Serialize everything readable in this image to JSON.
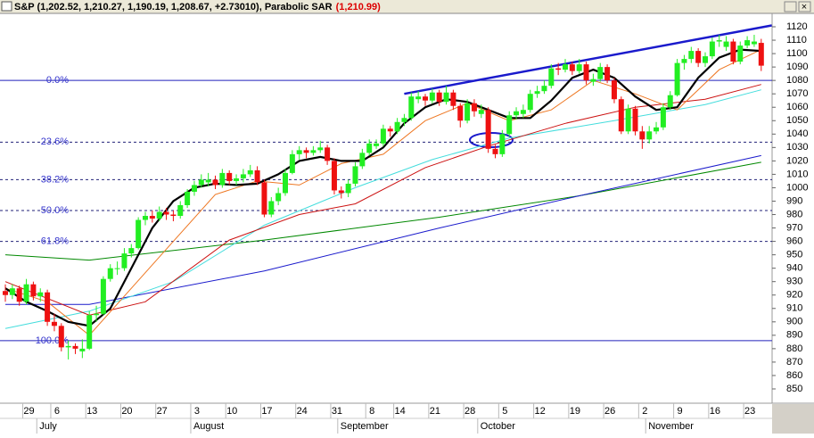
{
  "chart_data": {
    "type": "candlestick",
    "title": "S&P (1,202.52, 1,210.27, 1,190.19, 1,208.67, +2.73010), Parabolic SAR",
    "title_highlight": "(1,210.99)",
    "ylim": [
      845,
      1125
    ],
    "yticks": [
      850,
      860,
      870,
      880,
      890,
      900,
      910,
      920,
      930,
      940,
      950,
      960,
      970,
      980,
      990,
      1000,
      1010,
      1020,
      1030,
      1040,
      1050,
      1060,
      1070,
      1080,
      1090,
      1100,
      1110,
      1120
    ],
    "up_color": "#22ee22",
    "down_color": "#ee1111",
    "categories": [
      null,
      null,
      null,
      "29",
      null,
      null,
      null,
      "6",
      null,
      null,
      null,
      null,
      "13",
      null,
      null,
      null,
      null,
      "20",
      null,
      null,
      null,
      null,
      "27",
      null,
      null,
      null,
      null,
      "3",
      null,
      null,
      null,
      null,
      "10",
      null,
      null,
      null,
      null,
      "17",
      null,
      null,
      null,
      null,
      "24",
      null,
      null,
      null,
      null,
      "31",
      null,
      null,
      null,
      null,
      "8",
      null,
      null,
      null,
      "14",
      null,
      null,
      null,
      null,
      "21",
      null,
      null,
      null,
      null,
      "28",
      null,
      null,
      null,
      null,
      "5",
      null,
      null,
      null,
      null,
      "12",
      null,
      null,
      null,
      null,
      "19",
      null,
      null,
      null,
      null,
      "26",
      null,
      null,
      null,
      null,
      "2",
      null,
      null,
      null,
      null,
      "9",
      null,
      null,
      null,
      null,
      "16",
      null,
      null,
      null,
      null,
      "23",
      null,
      null
    ],
    "months": [
      null,
      null,
      null,
      null,
      null,
      "July",
      null,
      null,
      null,
      null,
      null,
      null,
      null,
      null,
      null,
      null,
      null,
      null,
      null,
      null,
      null,
      null,
      null,
      null,
      null,
      null,
      null,
      "August",
      null,
      null,
      null,
      null,
      null,
      null,
      null,
      null,
      null,
      null,
      null,
      null,
      null,
      null,
      null,
      null,
      null,
      null,
      null,
      null,
      "September",
      null,
      null,
      null,
      null,
      null,
      null,
      null,
      null,
      null,
      null,
      null,
      null,
      null,
      null,
      null,
      null,
      null,
      null,
      null,
      "October",
      null,
      null,
      null,
      null,
      null,
      null,
      null,
      null,
      null,
      null,
      null,
      null,
      null,
      null,
      null,
      null,
      null,
      null,
      null,
      null,
      null,
      null,
      null,
      "November",
      null,
      null,
      null,
      null,
      null,
      null,
      null,
      null,
      null,
      null,
      null,
      null,
      null,
      null,
      null,
      null,
      null
    ],
    "ohlc": [
      [
        923,
        928,
        915,
        920
      ],
      [
        920,
        928,
        917,
        925
      ],
      [
        925,
        927,
        912,
        915
      ],
      [
        915,
        932,
        913,
        928
      ],
      [
        928,
        930,
        916,
        919
      ],
      [
        919,
        925,
        915,
        922
      ],
      [
        922,
        924,
        897,
        900
      ],
      [
        900,
        906,
        893,
        897
      ],
      [
        897,
        899,
        878,
        881
      ],
      [
        881,
        886,
        872,
        882
      ],
      [
        882,
        884,
        876,
        880
      ],
      [
        878,
        887,
        873,
        880
      ],
      [
        880,
        908,
        879,
        905
      ],
      [
        905,
        912,
        900,
        906
      ],
      [
        906,
        934,
        905,
        932
      ],
      [
        932,
        943,
        930,
        940
      ],
      [
        940,
        945,
        935,
        940
      ],
      [
        940,
        955,
        938,
        951
      ],
      [
        951,
        958,
        948,
        955
      ],
      [
        955,
        978,
        954,
        976
      ],
      [
        976,
        982,
        972,
        979
      ],
      [
        979,
        983,
        974,
        977
      ],
      [
        977,
        986,
        975,
        982
      ],
      [
        982,
        985,
        976,
        980
      ],
      [
        980,
        983,
        975,
        979
      ],
      [
        979,
        990,
        977,
        987
      ],
      [
        987,
        999,
        985,
        997
      ],
      [
        997,
        1005,
        994,
        1002
      ],
      [
        1002,
        1010,
        1000,
        1006
      ],
      [
        1004,
        1011,
        1001,
        1006
      ],
      [
        1006,
        1009,
        999,
        1002
      ],
      [
        1002,
        1014,
        1000,
        1011
      ],
      [
        1011,
        1013,
        1002,
        1005
      ],
      [
        1005,
        1010,
        1002,
        1007
      ],
      [
        1007,
        1014,
        1004,
        1010
      ],
      [
        1010,
        1017,
        1008,
        1013
      ],
      [
        1013,
        1016,
        1002,
        1004
      ],
      [
        1004,
        1006,
        978,
        980
      ],
      [
        980,
        993,
        978,
        990
      ],
      [
        990,
        1000,
        987,
        996
      ],
      [
        996,
        1014,
        994,
        1011
      ],
      [
        1011,
        1028,
        1010,
        1025
      ],
      [
        1025,
        1031,
        1021,
        1028
      ],
      [
        1028,
        1030,
        1022,
        1026
      ],
      [
        1026,
        1031,
        1024,
        1028
      ],
      [
        1028,
        1035,
        1026,
        1030
      ],
      [
        1030,
        1032,
        1017,
        1020
      ],
      [
        1020,
        1022,
        995,
        998
      ],
      [
        998,
        1001,
        992,
        996
      ],
      [
        996,
        1006,
        993,
        1003
      ],
      [
        1003,
        1019,
        1001,
        1016
      ],
      [
        1016,
        1029,
        1014,
        1026
      ],
      [
        1026,
        1036,
        1024,
        1033
      ],
      [
        1031,
        1036,
        1029,
        1033
      ],
      [
        1033,
        1047,
        1031,
        1044
      ],
      [
        1044,
        1046,
        1038,
        1042
      ],
      [
        1042,
        1052,
        1040,
        1049
      ],
      [
        1049,
        1055,
        1046,
        1052
      ],
      [
        1052,
        1071,
        1050,
        1068
      ],
      [
        1066,
        1072,
        1063,
        1068
      ],
      [
        1068,
        1070,
        1061,
        1065
      ],
      [
        1065,
        1074,
        1063,
        1071
      ],
      [
        1071,
        1073,
        1061,
        1064
      ],
      [
        1064,
        1076,
        1062,
        1071
      ],
      [
        1071,
        1073,
        1058,
        1061
      ],
      [
        1061,
        1063,
        1045,
        1050
      ],
      [
        1050,
        1066,
        1048,
        1063
      ],
      [
        1063,
        1066,
        1053,
        1057
      ],
      [
        1055,
        1062,
        1052,
        1058
      ],
      [
        1058,
        1060,
        1026,
        1029
      ],
      [
        1029,
        1032,
        1022,
        1025
      ],
      [
        1025,
        1043,
        1023,
        1040
      ],
      [
        1040,
        1057,
        1038,
        1054
      ],
      [
        1054,
        1060,
        1051,
        1057
      ],
      [
        1055,
        1062,
        1052,
        1058
      ],
      [
        1058,
        1073,
        1056,
        1070
      ],
      [
        1070,
        1076,
        1067,
        1072
      ],
      [
        1072,
        1080,
        1070,
        1076
      ],
      [
        1076,
        1092,
        1074,
        1089
      ],
      [
        1089,
        1093,
        1084,
        1088
      ],
      [
        1088,
        1096,
        1086,
        1092
      ],
      [
        1092,
        1094,
        1084,
        1087
      ],
      [
        1087,
        1096,
        1085,
        1092
      ],
      [
        1092,
        1094,
        1077,
        1080
      ],
      [
        1079,
        1085,
        1076,
        1081
      ],
      [
        1081,
        1093,
        1079,
        1090
      ],
      [
        1090,
        1092,
        1078,
        1080
      ],
      [
        1080,
        1082,
        1063,
        1066
      ],
      [
        1066,
        1068,
        1040,
        1042
      ],
      [
        1042,
        1062,
        1040,
        1059
      ],
      [
        1059,
        1061,
        1039,
        1042
      ],
      [
        1042,
        1046,
        1029,
        1036
      ],
      [
        1036,
        1046,
        1033,
        1042
      ],
      [
        1042,
        1049,
        1040,
        1045
      ],
      [
        1045,
        1063,
        1043,
        1060
      ],
      [
        1060,
        1072,
        1058,
        1069
      ],
      [
        1069,
        1096,
        1068,
        1093
      ],
      [
        1093,
        1099,
        1088,
        1096
      ],
      [
        1096,
        1105,
        1093,
        1102
      ],
      [
        1102,
        1104,
        1090,
        1093
      ],
      [
        1093,
        1101,
        1090,
        1098
      ],
      [
        1098,
        1112,
        1096,
        1109
      ],
      [
        1109,
        1114,
        1105,
        1110
      ],
      [
        1105,
        1113,
        1102,
        1109
      ],
      [
        1109,
        1111,
        1092,
        1094
      ],
      [
        1094,
        1109,
        1092,
        1106
      ],
      [
        1106,
        1113,
        1104,
        1110
      ],
      [
        1107,
        1114,
        1105,
        1109
      ],
      [
        1108,
        1111,
        1087,
        1091
      ]
    ],
    "overlays": [
      {
        "color": "#008800",
        "x": [
          0,
          12,
          37,
          62,
          82,
          108
        ],
        "values": [
          950,
          946,
          961,
          978,
          994,
          1019
        ]
      },
      {
        "color": "#1a1acc",
        "x": [
          0,
          12,
          37,
          62,
          82,
          108
        ],
        "values": [
          913,
          913,
          938,
          970,
          994,
          1024
        ]
      },
      {
        "color": "#44dddd",
        "x": [
          0,
          12,
          24,
          37,
          50,
          61,
          72,
          87,
          100,
          108
        ],
        "values": [
          895,
          908,
          930,
          972,
          1000,
          1021,
          1037,
          1050,
          1062,
          1073
        ]
      },
      {
        "color": "#cc1111",
        "x": [
          0,
          12,
          20,
          32,
          42,
          50,
          60,
          69,
          80,
          90,
          100,
          108
        ],
        "values": [
          930,
          905,
          915,
          961,
          980,
          988,
          1015,
          1031,
          1048,
          1060,
          1066,
          1077
        ]
      },
      {
        "color": "#ee7722",
        "x": [
          0,
          6,
          12,
          18,
          24,
          30,
          36,
          42,
          48,
          54,
          60,
          66,
          72,
          78,
          84,
          90,
          96,
          102,
          108
        ],
        "values": [
          925,
          915,
          890,
          925,
          960,
          995,
          1005,
          1002,
          1018,
          1025,
          1050,
          1063,
          1050,
          1058,
          1080,
          1070,
          1058,
          1088,
          1103
        ]
      },
      {
        "color": "#000000",
        "x": [
          0,
          3,
          6,
          9,
          12,
          15,
          18,
          21,
          24,
          27,
          30,
          33,
          36,
          39,
          42,
          45,
          48,
          51,
          54,
          57,
          60,
          63,
          66,
          69,
          72,
          75,
          78,
          81,
          84,
          87,
          90,
          93,
          96,
          99,
          102,
          105,
          108
        ],
        "values": [
          925,
          915,
          908,
          900,
          897,
          910,
          940,
          970,
          990,
          1000,
          1003,
          1002,
          1003,
          1010,
          1020,
          1023,
          1020,
          1020,
          1030,
          1048,
          1060,
          1066,
          1064,
          1058,
          1052,
          1052,
          1065,
          1082,
          1088,
          1082,
          1068,
          1058,
          1060,
          1082,
          1097,
          1103,
          1102
        ]
      }
    ],
    "trendline": {
      "color": "#1a1acc",
      "x": [
        57,
        109.5
      ],
      "values": [
        1070,
        1121
      ]
    },
    "fib_levels": [
      {
        "label": "0.0%",
        "value": 1080
      },
      {
        "label": "23.6%",
        "value": 1034
      },
      {
        "label": "38.2%",
        "value": 1006
      },
      {
        "label": "50.0%",
        "value": 983
      },
      {
        "label": "61.8%",
        "value": 960
      },
      {
        "label": "100.0%",
        "value": 886
      }
    ]
  }
}
